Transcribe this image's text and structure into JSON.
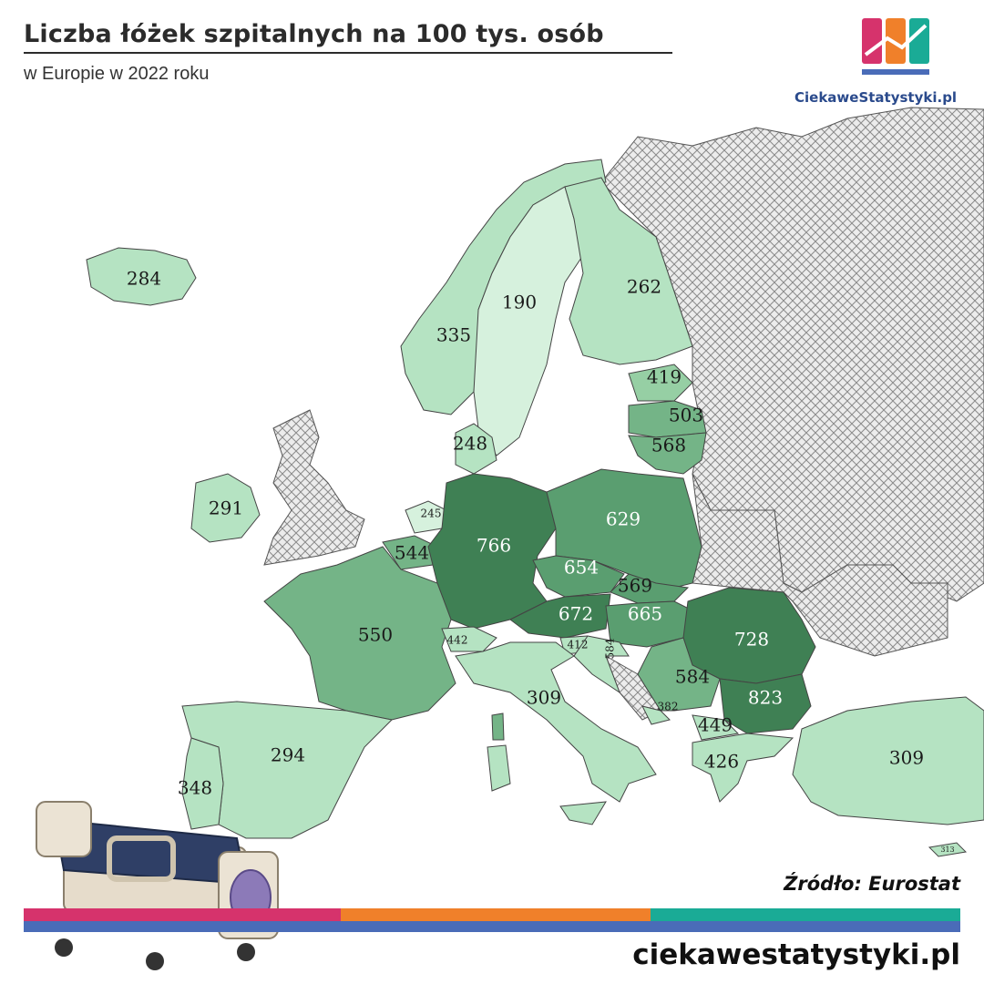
{
  "header": {
    "title": "Liczba łóżek szpitalnych na 100 tys. osób",
    "subtitle": "w Europie w 2022 roku"
  },
  "brand": {
    "logo_text": "CiekaweStatystyki.pl"
  },
  "footer": {
    "source": "Źródło: Eurostat",
    "url": "ciekawestatystyki.pl"
  },
  "colors": {
    "very_light": "#d6f1dd",
    "light": "#b5e3c2",
    "medium_light": "#96cfa4",
    "medium": "#74b487",
    "dark": "#5a9e70",
    "darkest": "#3f8054",
    "no_data_hatch": "#999999",
    "stripe_pink": "#d6336c",
    "stripe_orange": "#f0802a",
    "stripe_teal": "#1aab96",
    "stripe_blue": "#4a6cb8"
  },
  "map_data": {
    "unit": "łóżka na 100 tys. osób",
    "year": 2022,
    "regions": [
      {
        "id": "iceland",
        "value": "284"
      },
      {
        "id": "norway",
        "value": "335"
      },
      {
        "id": "sweden",
        "value": "190"
      },
      {
        "id": "finland",
        "value": "262"
      },
      {
        "id": "estonia",
        "value": "419"
      },
      {
        "id": "latvia",
        "value": "503"
      },
      {
        "id": "lithuania",
        "value": "568"
      },
      {
        "id": "denmark",
        "value": "248"
      },
      {
        "id": "ireland",
        "value": "291"
      },
      {
        "id": "netherlands",
        "value": "245"
      },
      {
        "id": "belgium",
        "value": "544"
      },
      {
        "id": "germany",
        "value": "766"
      },
      {
        "id": "poland",
        "value": "629"
      },
      {
        "id": "czechia",
        "value": "654"
      },
      {
        "id": "slovakia",
        "value": "569"
      },
      {
        "id": "austria",
        "value": "672"
      },
      {
        "id": "hungary",
        "value": "665"
      },
      {
        "id": "romania",
        "value": "728"
      },
      {
        "id": "bulgaria",
        "value": "823"
      },
      {
        "id": "france",
        "value": "550"
      },
      {
        "id": "switzerland",
        "value": "442"
      },
      {
        "id": "slovenia",
        "value": "412"
      },
      {
        "id": "croatia",
        "value": "584"
      },
      {
        "id": "serbia",
        "value": "584"
      },
      {
        "id": "montenegro",
        "value": "382"
      },
      {
        "id": "north_macedonia",
        "value": "449"
      },
      {
        "id": "greece",
        "value": "426"
      },
      {
        "id": "italy",
        "value": "309"
      },
      {
        "id": "spain",
        "value": "294"
      },
      {
        "id": "portugal",
        "value": "348"
      },
      {
        "id": "turkey",
        "value": "309"
      },
      {
        "id": "cyprus",
        "value": "313"
      }
    ]
  }
}
